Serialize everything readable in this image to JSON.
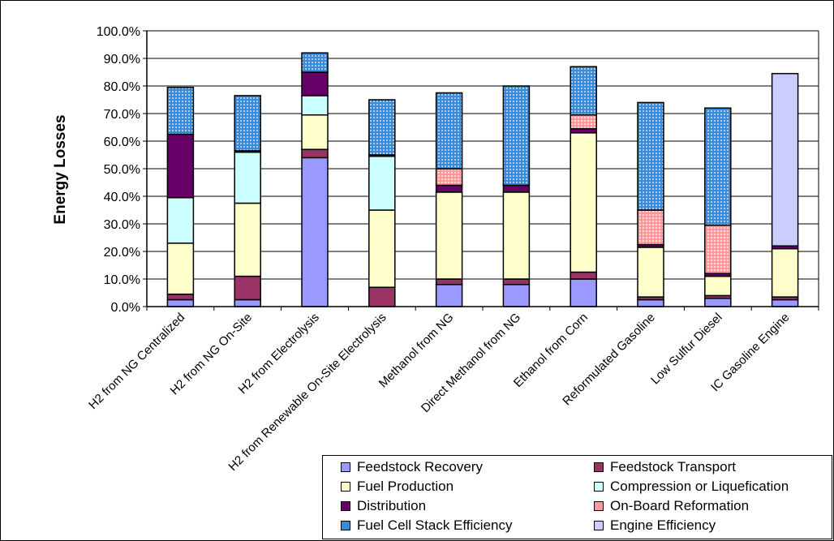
{
  "chart_data": {
    "type": "bar",
    "stacked": true,
    "title": "",
    "xlabel": "",
    "ylabel": "Energy Losses",
    "ylim": [
      0,
      100
    ],
    "yticks": [
      "0.0%",
      "10.0%",
      "20.0%",
      "30.0%",
      "40.0%",
      "50.0%",
      "60.0%",
      "70.0%",
      "80.0%",
      "90.0%",
      "100.0%"
    ],
    "grid": true,
    "legend_position": "bottom-right",
    "categories": [
      "H2 from NG Centralized",
      "H2 from NG On-Site",
      "H2 from Electrolysis",
      "H2 from Renewable On-Site Electrolysis",
      "Methanol from NG",
      "Direct Methanol from NG",
      "Ethanol from Corn",
      "Reformulated Gasoline",
      "Low Sulfur Diesel",
      "IC Gasoline Engine"
    ],
    "series": [
      {
        "name": "Feedstock Recovery",
        "color": "#9999ff",
        "values": [
          2.5,
          2.5,
          54,
          0,
          8,
          8,
          10,
          2.5,
          3,
          2.5
        ]
      },
      {
        "name": "Feedstock Transport",
        "color": "#993366",
        "values": [
          2,
          8.5,
          3,
          7,
          2,
          2,
          2.5,
          1,
          1,
          1
        ]
      },
      {
        "name": "Fuel Production",
        "color": "#ffffcc",
        "values": [
          18.5,
          26.5,
          12.5,
          28,
          31.5,
          31.5,
          50.5,
          18,
          7,
          17.5
        ]
      },
      {
        "name": "Compression or Liquefication",
        "color": "#ccffff",
        "values": [
          16.5,
          18.5,
          7,
          19.5,
          0,
          0,
          0,
          0,
          0,
          0
        ]
      },
      {
        "name": "Distribution",
        "color": "#660066",
        "values": [
          23,
          0.5,
          8.5,
          0.5,
          2.5,
          2.5,
          1.5,
          1,
          1,
          1
        ]
      },
      {
        "name": "On-Board Reformation",
        "color": "#ff9999",
        "values": [
          0,
          0,
          0,
          0,
          6,
          0,
          5,
          12.5,
          17.5,
          0
        ]
      },
      {
        "name": "Fuel Cell Stack Efficiency",
        "color": "#3a8ad6",
        "values": [
          17,
          20,
          7,
          20,
          27.5,
          36,
          17.5,
          39,
          42.5,
          0
        ]
      },
      {
        "name": "Engine Efficiency",
        "color": "#ccccff",
        "values": [
          0,
          0,
          0,
          0,
          0,
          0,
          0,
          0,
          0,
          62.5
        ]
      }
    ]
  }
}
